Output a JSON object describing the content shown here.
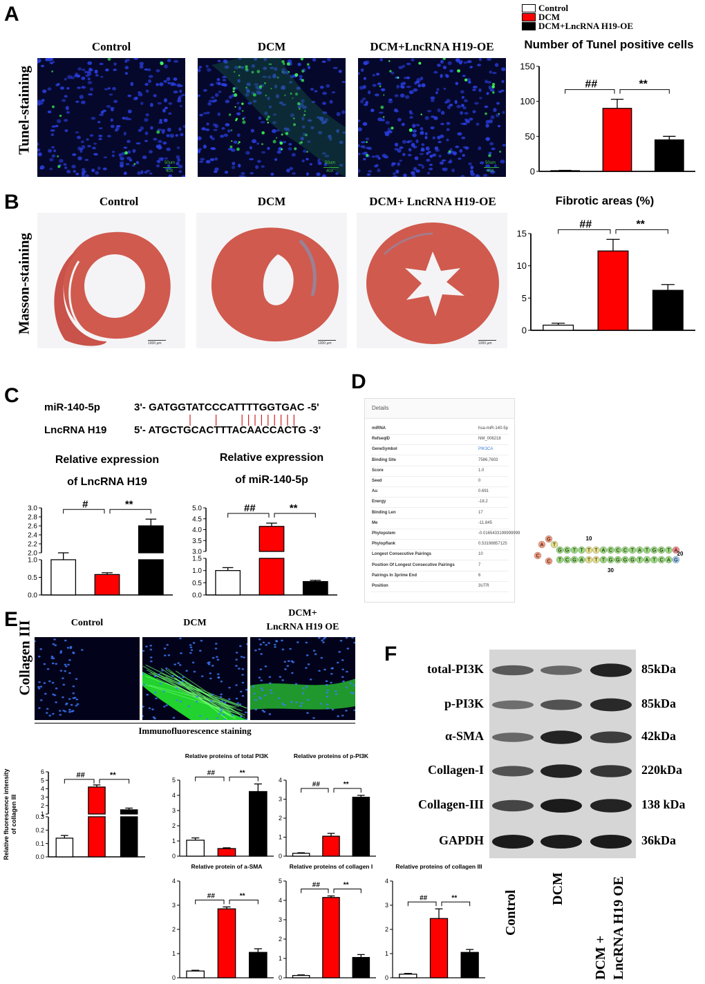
{
  "panels": {
    "A": "A",
    "B": "B",
    "C": "C",
    "D": "D",
    "E": "E",
    "F": "F"
  },
  "legend": [
    {
      "label": "Control",
      "color": "#ffffff"
    },
    {
      "label": "DCM",
      "color": "#ff0000"
    },
    {
      "label": "DCM+LncRNA H19-OE",
      "color": "#000000"
    }
  ],
  "panelA": {
    "row_label": "Tunel-staining",
    "images": [
      "Control",
      "DCM",
      "DCM+LncRNA H19-OE"
    ],
    "scale_text": "50um",
    "mag_text": "40X"
  },
  "panelB": {
    "row_label": "Masson-staining",
    "images": [
      "Control",
      "DCM",
      "DCM+ LncRNA H19-OE"
    ],
    "scale_text": "1000 µm"
  },
  "panelC": {
    "seq_mir_label": "miR-140-5p",
    "seq_mir": "3'- GATGGTATCCCATTTTGGTGAC -5'",
    "seq_lnc_label": "LncRNA H19",
    "seq_lnc": "5'- ATGCTGCACTTTACAACCACTG -3'"
  },
  "panelD": {
    "header": "Details",
    "rows": [
      {
        "k": "miRNA",
        "v": "hsa-miR-140-5p"
      },
      {
        "k": "RefseqID",
        "v": "NM_006218"
      },
      {
        "k": "GeneSymbol",
        "v": "PIK3CA"
      },
      {
        "k": "Binding Site",
        "v": "7586,7603"
      },
      {
        "k": "Score",
        "v": "1.0"
      },
      {
        "k": "Seed",
        "v": "0"
      },
      {
        "k": "Au",
        "v": "0.691"
      },
      {
        "k": "Energy",
        "v": "-18.2"
      },
      {
        "k": "Binding Len",
        "v": "17"
      },
      {
        "k": "Me",
        "v": "-11.845"
      },
      {
        "k": "Phylopstem",
        "v": "-0.0165433199999999"
      },
      {
        "k": "Phylopflank",
        "v": "0.53198857125"
      },
      {
        "k": "Longest Consecutive Pairings",
        "v": "10"
      },
      {
        "k": "Position Of Longest Consecutive Pairings",
        "v": "7"
      },
      {
        "k": "Pairings In 3prime End",
        "v": "6"
      },
      {
        "k": "Position",
        "v": "3UTR"
      }
    ],
    "hairpin_labels": {
      "n10": "10",
      "n20": "20",
      "n30": "30"
    }
  },
  "panelE": {
    "row_label": "Collagen III",
    "images": [
      "Control",
      "DCM",
      "DCM+\nLncRNA H19 OE"
    ],
    "image_title_1": "Control",
    "image_title_2": "DCM",
    "image_title_3a": "DCM+",
    "image_title_3b": "LncRNA H19 OE",
    "caption": "Immunofluorescence staining"
  },
  "panelF": {
    "rows": [
      {
        "label": "total-PI3K",
        "kda": "85kDa"
      },
      {
        "label": "p-PI3K",
        "kda": "85kDa"
      },
      {
        "label": "α-SMA",
        "kda": "42kDa"
      },
      {
        "label": "Collagen-I",
        "kda": "220kDa"
      },
      {
        "label": "Collagen-III",
        "kda": "138 kDa"
      },
      {
        "label": "GAPDH",
        "kda": "36kDa"
      }
    ],
    "lanes": [
      "Control",
      "DCM",
      "DCM +",
      "LncRNA H19 OE"
    ]
  },
  "chart_data": [
    {
      "id": "tunel",
      "type": "bar",
      "title": "Number of Tunel positive cells",
      "categories": [
        "Control",
        "DCM",
        "DCM+LncRNA H19-OE"
      ],
      "values": [
        1,
        90,
        45
      ],
      "errors": [
        0.5,
        13,
        5
      ],
      "ylim": [
        0,
        150
      ],
      "yticks": [
        "0",
        "50",
        "100",
        "150"
      ],
      "annotations": [
        "##",
        "**"
      ]
    },
    {
      "id": "fibrotic",
      "type": "bar",
      "title": "Fibrotic areas (%)",
      "categories": [
        "Control",
        "DCM",
        "DCM+ LncRNA H19-OE"
      ],
      "values": [
        0.8,
        12.3,
        6.2
      ],
      "errors": [
        0.3,
        1.8,
        0.9
      ],
      "ylim": [
        0,
        15
      ],
      "yticks": [
        "0",
        "5",
        "10",
        "15"
      ],
      "annotations": [
        "##",
        "**"
      ]
    },
    {
      "id": "h19",
      "type": "bar",
      "title": "Relative expression\nof LncRNA H19",
      "title_line1": "Relative expression",
      "title_line2": "of LncRNA H19",
      "categories": [
        "Control",
        "DCM",
        "DCM+LncRNA H19-OE"
      ],
      "values": [
        1.0,
        0.58,
        2.6
      ],
      "errors": [
        0.06,
        0.05,
        0.15
      ],
      "y_broken": true,
      "yticks_low": [
        "0.0",
        "0.5",
        "1.0"
      ],
      "yticks_high": [
        "2.0",
        "2.2",
        "2.4",
        "2.6",
        "2.8",
        "3.0"
      ],
      "annotations": [
        "#",
        "**"
      ]
    },
    {
      "id": "mir140",
      "type": "bar",
      "title": "Relative expression\nof miR-140-5p",
      "title_line1": "Relative expression",
      "title_line2": "of miR-140-5p",
      "categories": [
        "Control",
        "DCM",
        "DCM+LncRNA H19-OE"
      ],
      "values": [
        1.0,
        4.15,
        0.55
      ],
      "errors": [
        0.12,
        0.15,
        0.05
      ],
      "y_broken": true,
      "yticks_low": [
        "0.0",
        "0.5",
        "1.0",
        "1.5"
      ],
      "yticks_high": [
        "3.0",
        "3.5",
        "4.0",
        "4.5",
        "5.0"
      ],
      "annotations": [
        "##",
        "**"
      ]
    },
    {
      "id": "col3",
      "type": "bar",
      "ylabel": "Relative fluorescence intensity\nof collagen III",
      "ylabel_line1": "Relative fluorescence intensity",
      "ylabel_line2": "of collagen III",
      "categories": [
        "Control",
        "DCM",
        "DCM+LncRNA H19 OE"
      ],
      "values": [
        0.14,
        4.2,
        1.5
      ],
      "errors": [
        0.02,
        0.25,
        0.2
      ],
      "y_broken": true,
      "yticks_low": [
        "0.0",
        "0.1",
        "0.2",
        "0.3"
      ],
      "yticks_high": [
        "1",
        "2",
        "3",
        "4",
        "5",
        "6"
      ],
      "annotations": [
        "##",
        "**"
      ]
    },
    {
      "id": "tpi3k",
      "type": "bar",
      "title": "Relative proteins of total PI3K",
      "categories": [
        "Control",
        "DCM",
        "DCM+LncRNA H19 OE"
      ],
      "values": [
        1.05,
        0.5,
        4.25
      ],
      "errors": [
        0.15,
        0.05,
        0.5
      ],
      "ylim": [
        0,
        5
      ],
      "yticks": [
        "0",
        "1",
        "2",
        "3",
        "4",
        "5"
      ],
      "annotations": [
        "##",
        "**"
      ]
    },
    {
      "id": "ppi3k",
      "type": "bar",
      "title": "Relative proteins of p-PI3K",
      "categories": [
        "Control",
        "DCM",
        "DCM+LncRNA H19 OE"
      ],
      "values": [
        0.15,
        1.05,
        3.1
      ],
      "errors": [
        0.03,
        0.15,
        0.1
      ],
      "ylim": [
        0,
        4
      ],
      "yticks": [
        "0",
        "1",
        "2",
        "3",
        "4"
      ],
      "annotations": [
        "##",
        "**"
      ]
    },
    {
      "id": "asma",
      "type": "bar",
      "title": "Relative protein of a-SMA",
      "categories": [
        "Control",
        "DCM",
        "DCM+LncRNA H19 OE"
      ],
      "values": [
        0.28,
        2.85,
        1.05
      ],
      "errors": [
        0.03,
        0.08,
        0.15
      ],
      "ylim": [
        0,
        4
      ],
      "yticks": [
        "0",
        "1",
        "2",
        "3",
        "4"
      ],
      "annotations": [
        "##",
        "**"
      ]
    },
    {
      "id": "col1",
      "type": "bar",
      "title": "Relative proteins of collagen I",
      "categories": [
        "Control",
        "DCM",
        "DCM+LncRNA H19 OE"
      ],
      "values": [
        0.12,
        4.15,
        1.05
      ],
      "errors": [
        0.03,
        0.08,
        0.15
      ],
      "ylim": [
        0,
        5
      ],
      "yticks": [
        "0",
        "1",
        "2",
        "3",
        "4",
        "5"
      ],
      "annotations": [
        "##",
        "**"
      ]
    },
    {
      "id": "col3wb",
      "type": "bar",
      "title": "Relative proteins of collagen III",
      "categories": [
        "Control",
        "DCM",
        "DCM+LncRNA H19 OE"
      ],
      "values": [
        0.15,
        2.45,
        1.05
      ],
      "errors": [
        0.03,
        0.4,
        0.12
      ],
      "ylim": [
        0,
        4
      ],
      "yticks": [
        "0",
        "1",
        "2",
        "3",
        "4"
      ],
      "annotations": [
        "##",
        "**"
      ]
    }
  ]
}
